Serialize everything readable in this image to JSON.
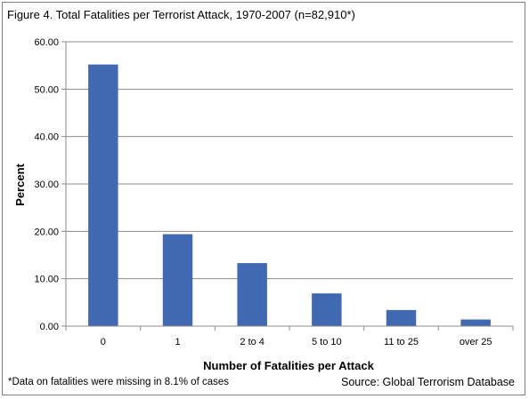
{
  "chart_data": {
    "type": "bar",
    "title": "Figure 4. Total Fatalities per Terrorist Attack, 1970-2007 (n=82,910*)",
    "xlabel": "Number of Fatalities per Attack",
    "ylabel": "Percent",
    "categories": [
      "0",
      "1",
      "2 to 4",
      "5 to 10",
      "11 to 25",
      "over 25"
    ],
    "values": [
      55.2,
      19.4,
      13.3,
      6.9,
      3.4,
      1.4
    ],
    "ylim": [
      0,
      60
    ],
    "yticks": [
      "0.00",
      "10.00",
      "20.00",
      "30.00",
      "40.00",
      "50.00",
      "60.00"
    ],
    "grid": true,
    "bar_color": "#4169b2",
    "footnote": "*Data on fatalities were missing in 8.1% of cases",
    "source": "Source: Global Terrorism Database"
  }
}
